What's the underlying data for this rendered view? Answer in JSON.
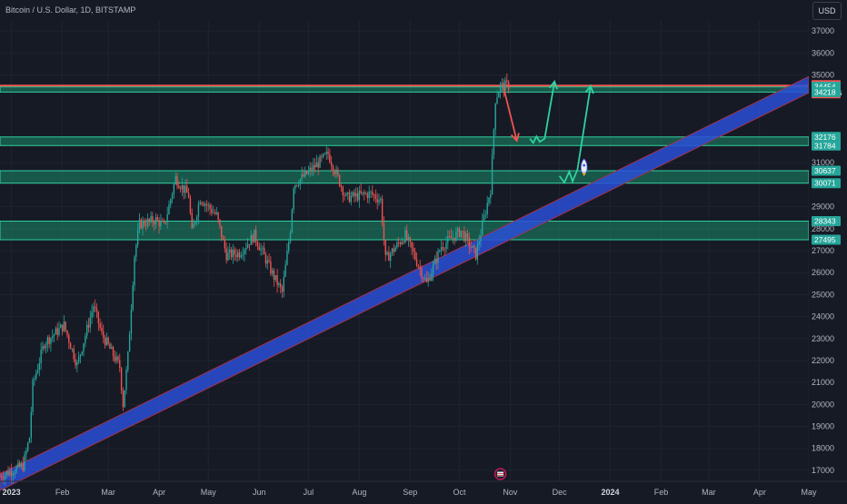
{
  "header": {
    "title": "Bitcoin / U.S. Dollar, 1D, BITSTAMP",
    "currency": "USD"
  },
  "colors": {
    "background": "#161a25",
    "grid": "#1f2330",
    "up": "#26a69a",
    "down": "#ef5350",
    "zone_fill": "#1aa37a",
    "zone_stroke": "#2fd19e",
    "resistance": "#ef5350",
    "trendline": "#2a4fd6",
    "trendline_edge": "#a3324b",
    "projection_down": "#ef5350",
    "projection_up": "#2fd19e",
    "axis_text": "#b2b5be"
  },
  "chart_data": {
    "type": "candlestick",
    "title": "Bitcoin / U.S. Dollar, 1D, BITSTAMP",
    "x_ticks": [
      "2023",
      "Feb",
      "Mar",
      "Apr",
      "May",
      "Jun",
      "Jul",
      "Aug",
      "Sep",
      "Oct",
      "Nov",
      "Dec",
      "2024",
      "Feb",
      "Mar",
      "Apr",
      "May"
    ],
    "y_ticks": [
      37000,
      36000,
      35000,
      31000,
      29000,
      28000,
      27000,
      26000,
      25000,
      24000,
      23000,
      22000,
      21000,
      20000,
      19000,
      18000,
      17000
    ],
    "x_range": [
      "2022-12-25",
      "2024-05-01"
    ],
    "y_range": [
      16500,
      37500
    ],
    "price_path": [
      [
        "2022-12-25",
        16750
      ],
      [
        "2023-01-08",
        17200
      ],
      [
        "2023-01-12",
        18500
      ],
      [
        "2023-01-14",
        20900
      ],
      [
        "2023-01-21",
        22800
      ],
      [
        "2023-02-02",
        23600
      ],
      [
        "2023-02-10",
        21800
      ],
      [
        "2023-02-20",
        24500
      ],
      [
        "2023-02-25",
        23200
      ],
      [
        "2023-03-08",
        21700
      ],
      [
        "2023-03-10",
        20000
      ],
      [
        "2023-03-13",
        22200
      ],
      [
        "2023-03-17",
        26800
      ],
      [
        "2023-03-20",
        28200
      ],
      [
        "2023-03-30",
        28400
      ],
      [
        "2023-04-04",
        28100
      ],
      [
        "2023-04-11",
        30300
      ],
      [
        "2023-04-19",
        29500
      ],
      [
        "2023-04-21",
        27800
      ],
      [
        "2023-04-26",
        29400
      ],
      [
        "2023-05-06",
        28600
      ],
      [
        "2023-05-12",
        26800
      ],
      [
        "2023-05-20",
        26900
      ],
      [
        "2023-05-29",
        27700
      ],
      [
        "2023-06-10",
        25800
      ],
      [
        "2023-06-15",
        25100
      ],
      [
        "2023-06-20",
        28000
      ],
      [
        "2023-06-22",
        30000
      ],
      [
        "2023-06-30",
        30500
      ],
      [
        "2023-07-13",
        31400
      ],
      [
        "2023-07-24",
        29400
      ],
      [
        "2023-08-08",
        29600
      ],
      [
        "2023-08-14",
        29300
      ],
      [
        "2023-08-17",
        26600
      ],
      [
        "2023-08-29",
        27700
      ],
      [
        "2023-09-11",
        25500
      ],
      [
        "2023-09-20",
        27200
      ],
      [
        "2023-10-02",
        27900
      ],
      [
        "2023-10-11",
        26800
      ],
      [
        "2023-10-16",
        28500
      ],
      [
        "2023-10-20",
        29800
      ],
      [
        "2023-10-23",
        33900
      ],
      [
        "2023-10-26",
        34500
      ],
      [
        "2023-10-31",
        34515
      ]
    ],
    "zones": [
      {
        "low": 34218,
        "high": 34454
      },
      {
        "low": 31784,
        "high": 32176
      },
      {
        "low": 30071,
        "high": 30637
      },
      {
        "low": 27495,
        "high": 28343
      }
    ],
    "resistance_line": 34515,
    "last_price": 34515,
    "countdown": "13:20:56",
    "trendline": [
      [
        "2022-12-25",
        16500
      ],
      [
        "2024-05-01",
        34600
      ]
    ],
    "projections": [
      {
        "direction": "down",
        "path": [
          [
            "2023-10-28",
            34400
          ],
          [
            "2023-11-05",
            32000
          ]
        ]
      },
      {
        "direction": "up",
        "path": [
          [
            "2023-11-13",
            32100
          ],
          [
            "2023-11-15",
            31900
          ],
          [
            "2023-11-17",
            32200
          ],
          [
            "2023-11-19",
            31950
          ],
          [
            "2023-11-22",
            32100
          ],
          [
            "2023-11-28",
            34700
          ]
        ]
      },
      {
        "direction": "up",
        "path": [
          [
            "2023-12-01",
            30400
          ],
          [
            "2023-12-04",
            30100
          ],
          [
            "2023-12-07",
            30600
          ],
          [
            "2023-12-09",
            30150
          ],
          [
            "2023-12-12",
            30700
          ],
          [
            "2023-12-20",
            34500
          ]
        ]
      }
    ],
    "price_labels": [
      {
        "value": "34515",
        "sub": "13:20:56",
        "price": 34515,
        "kind": "last"
      },
      {
        "value": "34454",
        "price": 34454,
        "kind": "zone"
      },
      {
        "value": "34218",
        "price": 34218,
        "kind": "zone"
      },
      {
        "value": "32176",
        "price": 32176,
        "kind": "zone"
      },
      {
        "value": "31784",
        "price": 31784,
        "kind": "zone"
      },
      {
        "value": "30637",
        "price": 30637,
        "kind": "zone"
      },
      {
        "value": "30071",
        "price": 30071,
        "kind": "zone"
      },
      {
        "value": "28343",
        "price": 28343,
        "kind": "zone"
      },
      {
        "value": "27495",
        "price": 27495,
        "kind": "zone"
      }
    ]
  }
}
